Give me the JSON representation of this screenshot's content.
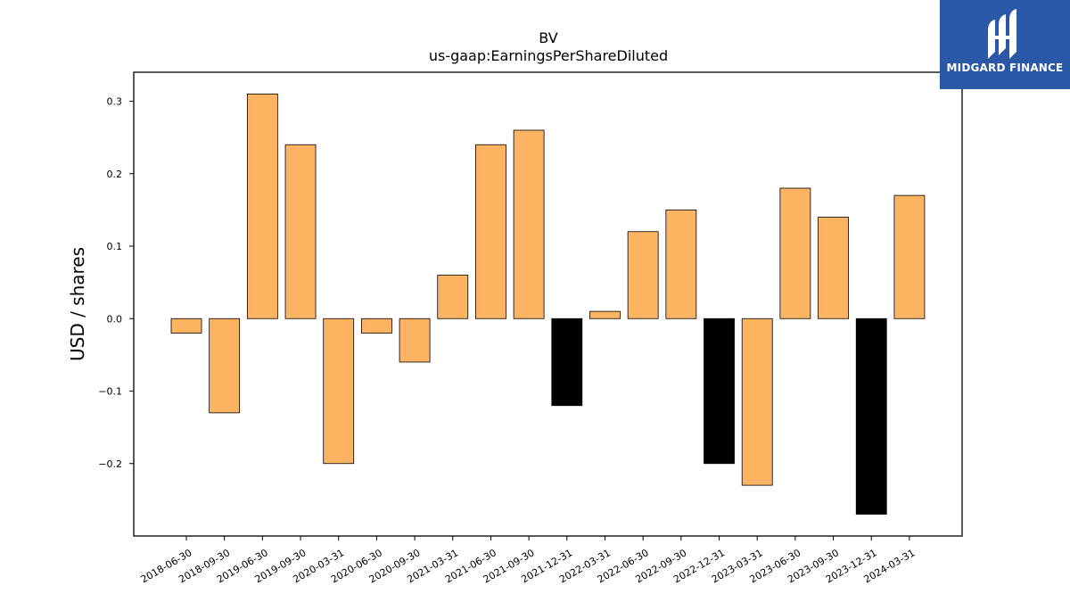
{
  "logo": {
    "text": "MIDGARD FINANCE",
    "icon": "midgard-logo-icon"
  },
  "chart_data": {
    "type": "bar",
    "title": "BV",
    "subtitle": "us-gaap:EarningsPerShareDiluted",
    "xlabel": "",
    "ylabel": "USD / shares",
    "ylim": [
      -0.3,
      0.34
    ],
    "yticks": [
      -0.2,
      -0.1,
      0.0,
      0.1,
      0.2,
      0.3
    ],
    "ytick_labels": [
      "−0.2",
      "−0.1",
      "0.0",
      "0.1",
      "0.2",
      "0.3"
    ],
    "grid": false,
    "colors": {
      "default": "#fdb462",
      "highlight": "#000000",
      "edge": "#000000"
    },
    "categories": [
      "2018-06-30",
      "2018-09-30",
      "2019-06-30",
      "2019-09-30",
      "2020-03-31",
      "2020-06-30",
      "2020-09-30",
      "2021-03-31",
      "2021-06-30",
      "2021-09-30",
      "2021-12-31",
      "2022-03-31",
      "2022-06-30",
      "2022-09-30",
      "2022-12-31",
      "2023-03-31",
      "2023-06-30",
      "2023-09-30",
      "2023-12-31",
      "2024-03-31"
    ],
    "values": [
      -0.02,
      -0.13,
      0.31,
      0.24,
      -0.2,
      -0.02,
      -0.06,
      0.06,
      0.24,
      0.26,
      -0.12,
      0.01,
      0.12,
      0.15,
      -0.2,
      -0.23,
      0.18,
      0.14,
      -0.27,
      0.17
    ],
    "highlighted": [
      false,
      false,
      false,
      false,
      false,
      false,
      false,
      false,
      false,
      false,
      true,
      false,
      false,
      false,
      true,
      false,
      false,
      false,
      true,
      false
    ]
  }
}
